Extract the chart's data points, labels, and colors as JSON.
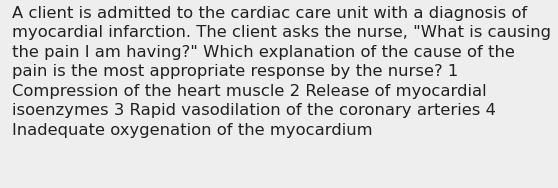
{
  "text": "A client is admitted to the cardiac care unit with a diagnosis of\nmyocardial infarction. The client asks the nurse, \"What is causing\nthe pain I am having?\" Which explanation of the cause of the\npain is the most appropriate response by the nurse? 1\nCompression of the heart muscle 2 Release of myocardial\nisoenzymes 3 Rapid vasodilation of the coronary arteries 4\nInadequate oxygenation of the myocardium",
  "background_color": "#eeeeee",
  "text_color": "#222222",
  "font_size": 11.8,
  "fig_width": 5.58,
  "fig_height": 1.88,
  "dpi": 100
}
